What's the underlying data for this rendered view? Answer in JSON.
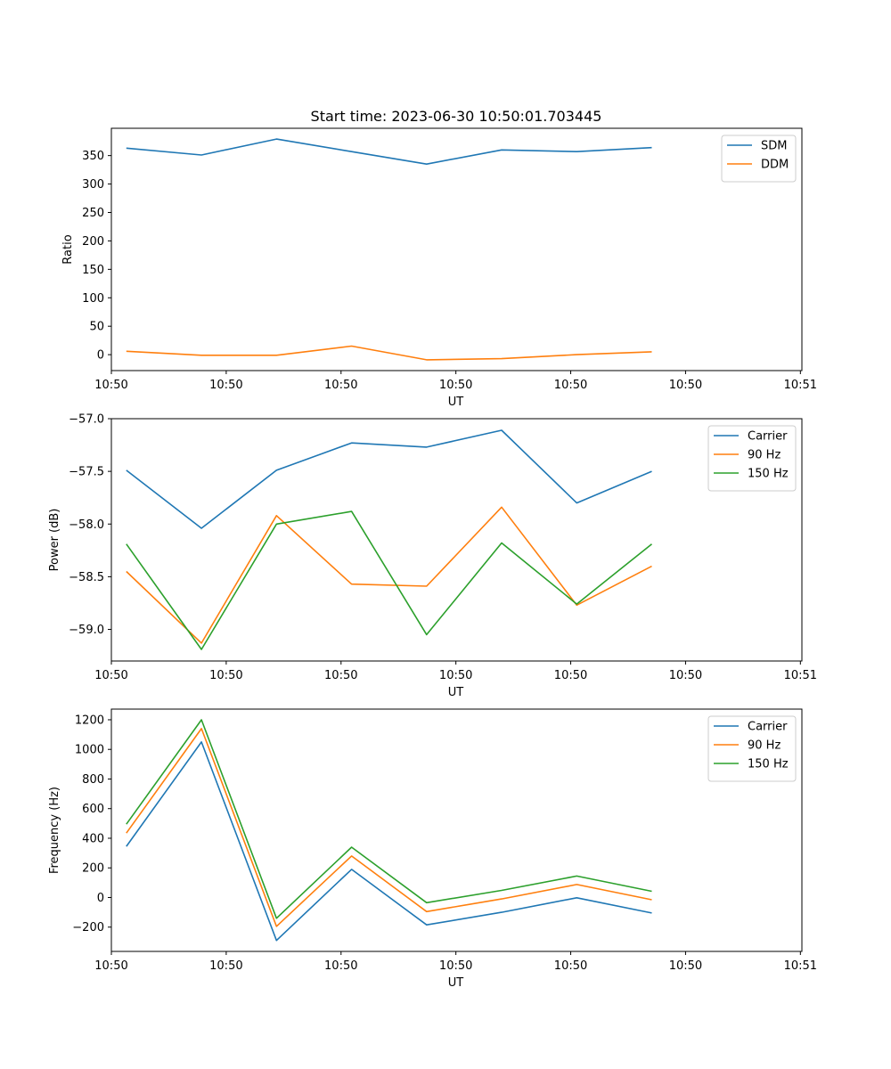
{
  "title": "Start time: 2023-06-30 10:50:01.703445",
  "chart_data": [
    {
      "type": "line",
      "xlabel": "UT",
      "ylabel": "Ratio",
      "x": [
        1,
        2,
        3,
        4,
        5,
        6,
        7,
        8
      ],
      "xlim": [
        0.8,
        10
      ],
      "xticks": [
        0.8,
        2.33,
        3.86,
        5.39,
        6.92,
        8.45,
        9.98
      ],
      "xtick_labels": [
        "10:50",
        "10:50",
        "10:50",
        "10:50",
        "10:50",
        "10:50",
        "10:51"
      ],
      "ylim": [
        -28,
        398
      ],
      "yticks": [
        0,
        50,
        100,
        150,
        200,
        250,
        300,
        350
      ],
      "ytick_labels": [
        "0",
        "50",
        "100",
        "150",
        "200",
        "250",
        "300",
        "350"
      ],
      "legend": "top-right",
      "series": [
        {
          "name": "SDM",
          "color": "#1f77b4",
          "values": [
            363,
            351,
            379,
            357,
            335,
            360,
            357,
            364
          ]
        },
        {
          "name": "DDM",
          "color": "#ff7f0e",
          "values": [
            6,
            -1,
            -1,
            15,
            -9,
            -7,
            0,
            5
          ]
        }
      ]
    },
    {
      "type": "line",
      "xlabel": "UT",
      "ylabel": "Power (dB)",
      "x": [
        1,
        2,
        3,
        4,
        5,
        6,
        7,
        8
      ],
      "xlim": [
        0.8,
        10
      ],
      "xticks": [
        0.8,
        2.33,
        3.86,
        5.39,
        6.92,
        8.45,
        9.98
      ],
      "xtick_labels": [
        "10:50",
        "10:50",
        "10:50",
        "10:50",
        "10:50",
        "10:50",
        "10:51"
      ],
      "ylim": [
        -59.3,
        -57.0
      ],
      "yticks": [
        -59.0,
        -58.5,
        -58.0,
        -57.5,
        -57.0
      ],
      "ytick_labels": [
        "−59.0",
        "−58.5",
        "−58.0",
        "−57.5",
        "−57.0"
      ],
      "legend": "top-right",
      "series": [
        {
          "name": "Carrier",
          "color": "#1f77b4",
          "values": [
            -57.49,
            -58.04,
            -57.49,
            -57.23,
            -57.27,
            -57.11,
            -57.8,
            -57.5
          ]
        },
        {
          "name": "90 Hz",
          "color": "#ff7f0e",
          "values": [
            -58.45,
            -59.13,
            -57.92,
            -58.57,
            -58.59,
            -57.84,
            -58.77,
            -58.4
          ]
        },
        {
          "name": "150 Hz",
          "color": "#2ca02c",
          "values": [
            -58.19,
            -59.19,
            -58.0,
            -57.88,
            -59.05,
            -58.18,
            -58.76,
            -58.19
          ]
        }
      ]
    },
    {
      "type": "line",
      "xlabel": "UT",
      "ylabel": "Frequency (Hz)",
      "x": [
        1,
        2,
        3,
        4,
        5,
        6,
        7,
        8
      ],
      "xlim": [
        0.8,
        10
      ],
      "xticks": [
        0.8,
        2.33,
        3.86,
        5.39,
        6.92,
        8.45,
        9.98
      ],
      "xtick_labels": [
        "10:50",
        "10:50",
        "10:50",
        "10:50",
        "10:50",
        "10:50",
        "10:51"
      ],
      "ylim": [
        -364,
        1272
      ],
      "yticks": [
        -200,
        0,
        200,
        400,
        600,
        800,
        1000,
        1200
      ],
      "ytick_labels": [
        "−200",
        "0",
        "200",
        "400",
        "600",
        "800",
        "1000",
        "1200"
      ],
      "legend": "top-right",
      "series": [
        {
          "name": "Carrier",
          "color": "#1f77b4",
          "values": [
            345,
            1050,
            -290,
            190,
            -185,
            -100,
            -2,
            -105
          ]
        },
        {
          "name": "90 Hz",
          "color": "#ff7f0e",
          "values": [
            435,
            1140,
            -195,
            280,
            -95,
            -10,
            88,
            -15
          ]
        },
        {
          "name": "150 Hz",
          "color": "#2ca02c",
          "values": [
            495,
            1200,
            -140,
            340,
            -35,
            48,
            145,
            42
          ]
        }
      ]
    }
  ]
}
